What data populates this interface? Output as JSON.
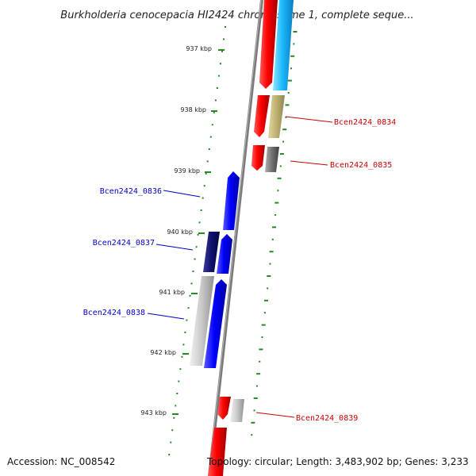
{
  "title": "Burkholderia cenocepacia HI2424 chromosome 1, complete seque...",
  "footer": {
    "accession": "Accession: NC_008542",
    "topology": "Topology: circular; Length: 3,483,902 bp; Genes: 3,233"
  },
  "colors": {
    "backbone": "#808080",
    "tick": "#228b22",
    "label_forward": "#cc0000",
    "label_reverse": "#0000cc"
  },
  "kbp_labels": [
    "937 kbp",
    "938 kbp",
    "939 kbp",
    "940 kbp",
    "941 kbp",
    "942 kbp",
    "943 kbp"
  ],
  "gene_labels": [
    {
      "text": "Bcen2424_0834",
      "strand": "forward"
    },
    {
      "text": "Bcen2424_0835",
      "strand": "forward"
    },
    {
      "text": "Bcen2424_0836",
      "strand": "reverse"
    },
    {
      "text": "Bcen2424_0837",
      "strand": "reverse"
    },
    {
      "text": "Bcen2424_0838",
      "strand": "reverse"
    },
    {
      "text": "Bcen2424_0839",
      "strand": "forward"
    }
  ]
}
